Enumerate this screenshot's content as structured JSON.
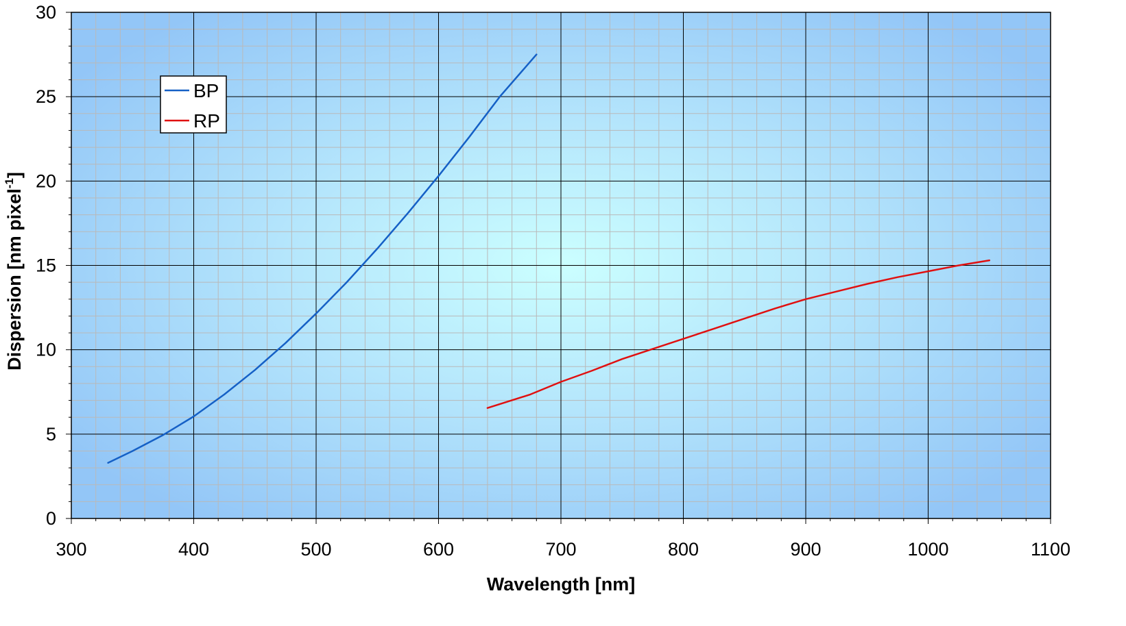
{
  "chart_data": {
    "type": "line",
    "xlabel": "Wavelength [nm]",
    "ylabel": "Dispersion [nm pixel",
    "ylabel_sup": "-1",
    "ylabel_close": "]",
    "xlim": [
      300,
      1100
    ],
    "ylim": [
      0,
      30
    ],
    "x_ticks": [
      "300",
      "400",
      "500",
      "600",
      "700",
      "800",
      "900",
      "1000",
      "1100"
    ],
    "y_ticks": [
      "0",
      "5",
      "10",
      "15",
      "20",
      "25",
      "30"
    ],
    "grid": true,
    "legend_position": "top-left",
    "colors": {
      "background_edge": "#93c6f7",
      "background_center": "#cbffff"
    },
    "series": [
      {
        "name": "BP",
        "color": "#1560c6",
        "points": [
          [
            330,
            3.3
          ],
          [
            350,
            4.0
          ],
          [
            375,
            4.95
          ],
          [
            400,
            6.05
          ],
          [
            425,
            7.35
          ],
          [
            450,
            8.8
          ],
          [
            475,
            10.4
          ],
          [
            500,
            12.15
          ],
          [
            525,
            14.0
          ],
          [
            550,
            16.0
          ],
          [
            575,
            18.1
          ],
          [
            600,
            20.3
          ],
          [
            625,
            22.6
          ],
          [
            650,
            25.0
          ],
          [
            680,
            27.5
          ]
        ]
      },
      {
        "name": "RP",
        "color": "#e01010",
        "points": [
          [
            640,
            6.55
          ],
          [
            675,
            7.35
          ],
          [
            700,
            8.1
          ],
          [
            725,
            8.75
          ],
          [
            750,
            9.45
          ],
          [
            775,
            10.05
          ],
          [
            800,
            10.65
          ],
          [
            825,
            11.25
          ],
          [
            850,
            11.85
          ],
          [
            875,
            12.45
          ],
          [
            900,
            13.0
          ],
          [
            925,
            13.45
          ],
          [
            950,
            13.9
          ],
          [
            975,
            14.3
          ],
          [
            1000,
            14.65
          ],
          [
            1025,
            15.0
          ],
          [
            1050,
            15.3
          ]
        ]
      }
    ]
  }
}
